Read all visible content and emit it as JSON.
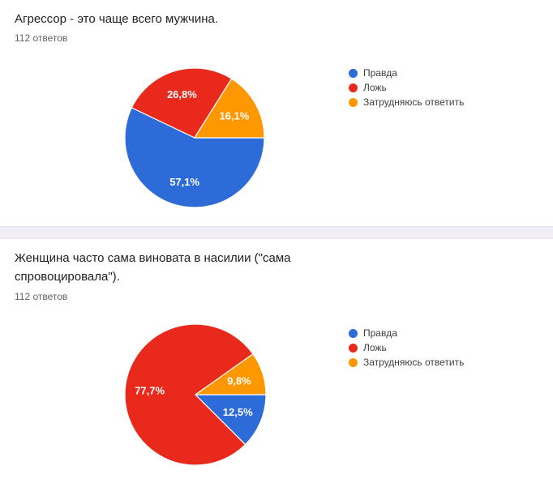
{
  "page": {
    "background": "#ffffff",
    "gap_color": "#f0edf7"
  },
  "chart_data": [
    {
      "type": "pie",
      "title": "Агрессор - это чаще всего мужчина.",
      "responses_label": "112 ответов",
      "legend_position": "right",
      "start_angle_deg": 0,
      "direction": "clockwise",
      "slices": [
        {
          "label": "Правда",
          "value_pct": 57.1,
          "display": "57,1%",
          "color": "#2d6bd9"
        },
        {
          "label": "Ложь",
          "value_pct": 26.8,
          "display": "26,8%",
          "color": "#e8291c"
        },
        {
          "label": "Затрудняюсь ответить",
          "value_pct": 16.1,
          "display": "16,1%",
          "color": "#ff9800"
        }
      ]
    },
    {
      "type": "pie",
      "title": "Женщина часто сама виновата в насилии (\"сама спровоцировала\").",
      "responses_label": "112 ответов",
      "legend_position": "right",
      "start_angle_deg": 0,
      "direction": "clockwise",
      "slices": [
        {
          "label": "Правда",
          "value_pct": 12.5,
          "display": "12,5%",
          "color": "#2d6bd9"
        },
        {
          "label": "Ложь",
          "value_pct": 77.7,
          "display": "77,7%",
          "color": "#e8291c"
        },
        {
          "label": "Затрудняюсь ответить",
          "value_pct": 9.8,
          "display": "9,8%",
          "color": "#ff9800"
        }
      ]
    }
  ]
}
